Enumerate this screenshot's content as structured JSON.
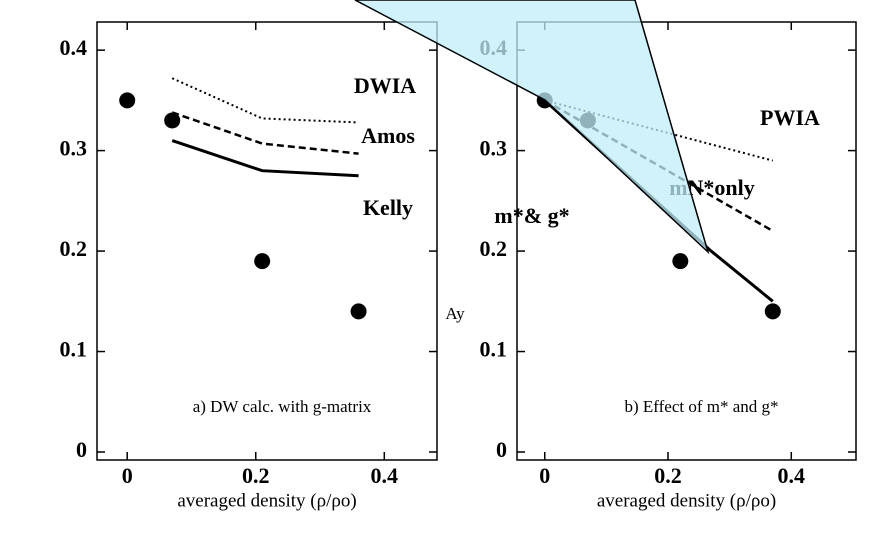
{
  "chart_data": [
    {
      "type": "line",
      "annotation": "a) DW calc. with g-matrix",
      "x_label": "averaged density (ρ/ρo)",
      "xlim": [
        -0.047,
        0.482
      ],
      "ylim": [
        0,
        0.428
      ],
      "xticks": [
        0,
        0.2,
        0.4
      ],
      "yticks": [
        0,
        0.1,
        0.2,
        0.3,
        0.4
      ],
      "series": [
        {
          "style": "points",
          "color": "#000000",
          "x": [
            0,
            0.07,
            0.21,
            0.36
          ],
          "values": [
            0.35,
            0.33,
            0.19,
            0.14
          ]
        },
        {
          "name": "DWIA",
          "style": "dotted",
          "color": "#000000",
          "x": [
            0.07,
            0.21,
            0.36
          ],
          "values": [
            0.372,
            0.332,
            0.328
          ]
        },
        {
          "name": "Amos",
          "style": "dashed",
          "color": "#000000",
          "x": [
            0.07,
            0.21,
            0.36
          ],
          "values": [
            0.338,
            0.307,
            0.297
          ]
        },
        {
          "name": "Kelly",
          "style": "solid",
          "color": "#000000",
          "x": [
            0.07,
            0.21,
            0.36
          ],
          "values": [
            0.31,
            0.28,
            0.275
          ]
        }
      ]
    },
    {
      "type": "line",
      "annotation": "b) Effect of m* and g*",
      "x_label": "averaged density (ρ/ρo)",
      "y_label": "Ay",
      "xlim": [
        -0.045,
        0.505
      ],
      "ylim": [
        0,
        0.428
      ],
      "xticks": [
        0,
        0.2,
        0.4
      ],
      "yticks": [
        0,
        0.1,
        0.2,
        0.3,
        0.4
      ],
      "series": [
        {
          "style": "points",
          "color": "#000000",
          "x": [
            0,
            0.07,
            0.22,
            0.37
          ],
          "values": [
            0.35,
            0.33,
            0.19,
            0.14
          ]
        },
        {
          "name": "PWIA",
          "style": "dotted",
          "color": "#000000",
          "x": [
            0,
            0.37
          ],
          "values": [
            0.35,
            0.29
          ]
        },
        {
          "name": "mN*only",
          "style": "dashed",
          "color": "#000000",
          "x": [
            0,
            0.37
          ],
          "values": [
            0.35,
            0.22
          ]
        },
        {
          "name": "m*& g*",
          "style": "solid",
          "color": "#000000",
          "x": [
            0,
            0.27,
            0.37
          ],
          "values": [
            0.35,
            0.2,
            0.15
          ]
        }
      ]
    }
  ]
}
